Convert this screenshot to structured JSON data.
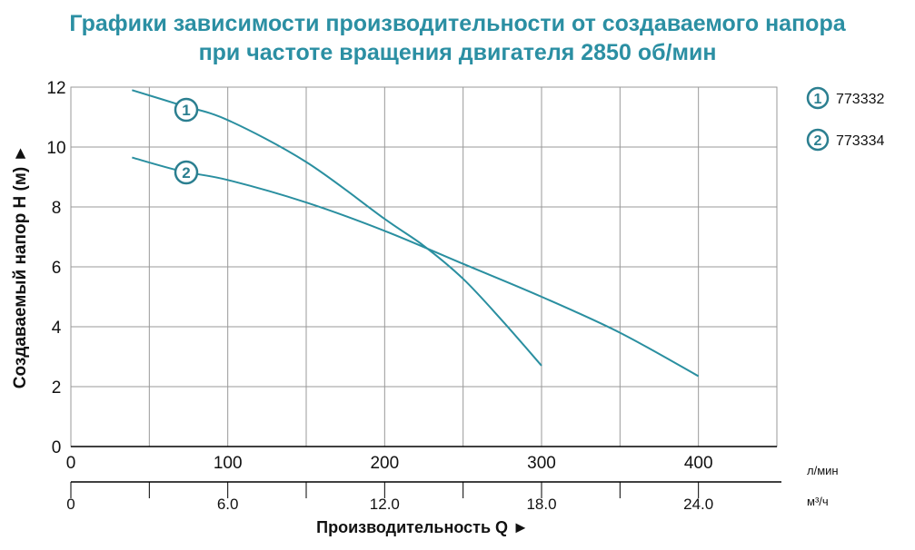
{
  "chart_data": {
    "type": "line",
    "title_line1": "Графики зависимости производительности от создаваемого напора",
    "title_line2": "при частоте вращения двигателя 2850 об/мин",
    "xlabel": "Производительность Q ►",
    "ylabel": "Создаваемый напор H (м) ►",
    "x_unit": "л/мин",
    "x2_unit": "м³/ч",
    "xlim": [
      0,
      450
    ],
    "ylim": [
      0,
      12
    ],
    "x_ticks": [
      "0",
      "100",
      "200",
      "300",
      "400"
    ],
    "x2_ticks": [
      "0",
      "6.0",
      "12.0",
      "18.0",
      "24.0"
    ],
    "y_ticks": [
      "0",
      "2",
      "4",
      "6",
      "8",
      "10",
      "12"
    ],
    "grid": true,
    "legend_position": "right",
    "color": "#2a8fa0",
    "title_color": "#2b8fa3",
    "series": [
      {
        "name": "773332",
        "marker": "1",
        "points": [
          [
            39,
            11.9
          ],
          [
            70,
            11.4
          ],
          [
            100,
            10.9
          ],
          [
            150,
            9.5
          ],
          [
            200,
            7.6
          ],
          [
            225,
            6.7
          ],
          [
            250,
            5.6
          ],
          [
            275,
            4.2
          ],
          [
            300,
            2.7
          ]
        ]
      },
      {
        "name": "773334",
        "marker": "2",
        "points": [
          [
            39,
            9.65
          ],
          [
            70,
            9.2
          ],
          [
            100,
            8.9
          ],
          [
            150,
            8.15
          ],
          [
            200,
            7.2
          ],
          [
            250,
            6.1
          ],
          [
            300,
            5.0
          ],
          [
            350,
            3.8
          ],
          [
            400,
            2.35
          ]
        ]
      }
    ]
  }
}
